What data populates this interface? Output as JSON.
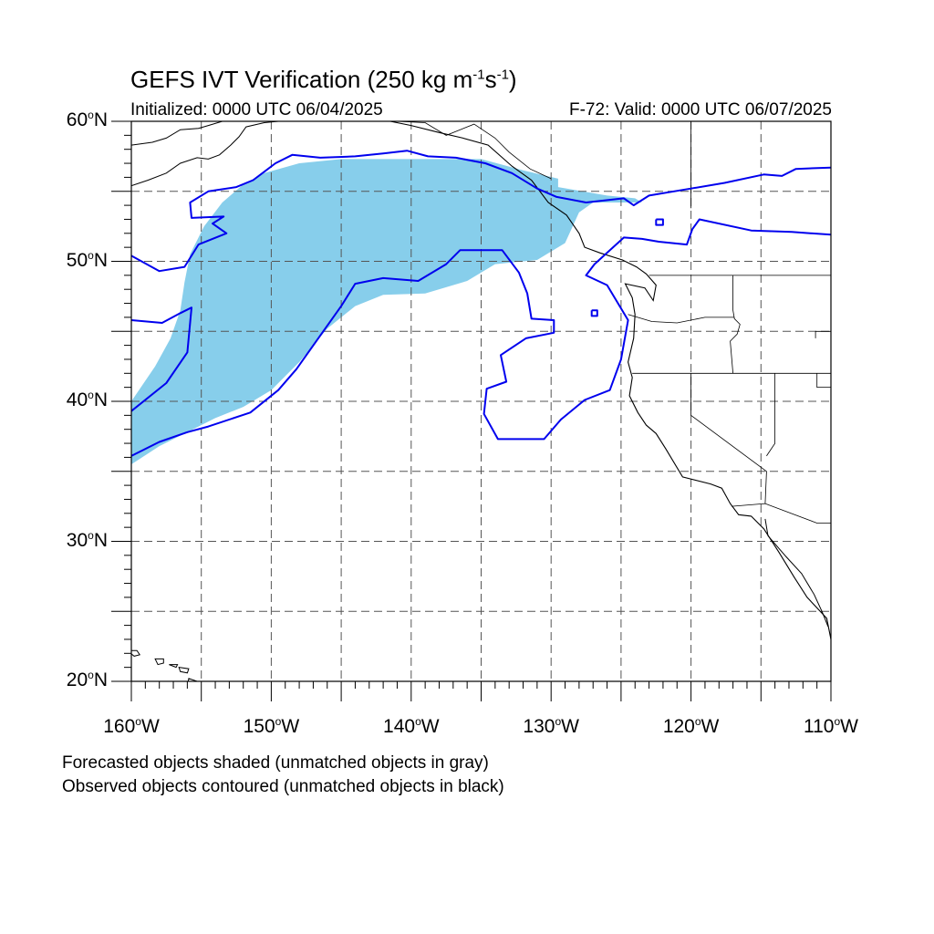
{
  "title": {
    "main": "GEFS IVT Verification (250 kg m",
    "exp1": "-1",
    "mid": "s",
    "exp2": "-1",
    "close": ")"
  },
  "init_text": "Initialized: 0000 UTC 06/04/2025",
  "valid_text": "F-72: Valid: 0000 UTC 06/07/2025",
  "lat_labels": [
    {
      "deg": "60",
      "hemi": "N",
      "lat": 60
    },
    {
      "deg": "50",
      "hemi": "N",
      "lat": 50
    },
    {
      "deg": "40",
      "hemi": "N",
      "lat": 40
    },
    {
      "deg": "30",
      "hemi": "N",
      "lat": 30
    },
    {
      "deg": "20",
      "hemi": "N",
      "lat": 20
    }
  ],
  "lon_labels": [
    {
      "deg": "160",
      "hemi": "W",
      "lon": -160
    },
    {
      "deg": "150",
      "hemi": "W",
      "lon": -150
    },
    {
      "deg": "140",
      "hemi": "W",
      "lon": -140
    },
    {
      "deg": "130",
      "hemi": "W",
      "lon": -130
    },
    {
      "deg": "120",
      "hemi": "W",
      "lon": -120
    },
    {
      "deg": "110",
      "hemi": "W",
      "lon": -110
    }
  ],
  "notes": [
    "Forecasted objects shaded (unmatched objects in gray)",
    "Observed objects contoured (unmatched objects in black)"
  ],
  "map_extent": {
    "lon_min": -160,
    "lon_max": -110,
    "lat_min": 20,
    "lat_max": 60,
    "grid_step": 5
  },
  "colors": {
    "forecast_fill": "#87ceeb",
    "observed_contour": "#0000ee",
    "coast": "#000000",
    "grid": "#555555"
  },
  "forecast_object": {
    "polygon": [
      [
        -160,
        35.5
      ],
      [
        -158,
        36.8
      ],
      [
        -156,
        37.8
      ],
      [
        -154,
        38.8
      ],
      [
        -152,
        39.6
      ],
      [
        -150,
        40.8
      ],
      [
        -148,
        42.8
      ],
      [
        -146,
        45.2
      ],
      [
        -144,
        46.8
      ],
      [
        -142,
        47.6
      ],
      [
        -139,
        47.7
      ],
      [
        -136,
        48.6
      ],
      [
        -134,
        49.8
      ],
      [
        -131,
        50.1
      ],
      [
        -129,
        51.3
      ],
      [
        -128,
        53.5
      ],
      [
        -127,
        54.2
      ],
      [
        -123.5,
        54.2
      ],
      [
        -124,
        54.5
      ],
      [
        -126,
        54.7
      ],
      [
        -129.5,
        55.3
      ],
      [
        -129.5,
        55.9
      ],
      [
        -132,
        56.5
      ],
      [
        -135,
        57.3
      ],
      [
        -140,
        57.3
      ],
      [
        -145,
        57.3
      ],
      [
        -148,
        57.0
      ],
      [
        -150.5,
        56.3
      ],
      [
        -152,
        55.5
      ],
      [
        -153.5,
        54.2
      ],
      [
        -154.8,
        52.5
      ],
      [
        -155.8,
        50.5
      ],
      [
        -156.2,
        48.5
      ],
      [
        -156.5,
        46.5
      ],
      [
        -157.2,
        44.5
      ],
      [
        -158.3,
        42.5
      ],
      [
        -160,
        40.0
      ]
    ]
  },
  "observed_objects": [
    {
      "polygon": [
        [
          -160,
          39.3
        ],
        [
          -157.5,
          41.3
        ],
        [
          -156,
          43.5
        ],
        [
          -155.7,
          46.7
        ],
        [
          -156.5,
          46.3
        ],
        [
          -157.8,
          45.6
        ],
        [
          -160,
          45.8
        ]
      ]
    },
    {
      "polygon": [
        [
          -160,
          50.4
        ],
        [
          -158,
          49.3
        ],
        [
          -156.2,
          49.6
        ],
        [
          -155.2,
          51.2
        ],
        [
          -153.2,
          52.0
        ],
        [
          -154.2,
          52.7
        ],
        [
          -153.4,
          53.2
        ],
        [
          -155.7,
          53.1
        ],
        [
          -155.8,
          54.2
        ],
        [
          -154.5,
          55.0
        ],
        [
          -152.5,
          55.3
        ],
        [
          -151.3,
          55.8
        ],
        [
          -150.5,
          56.4
        ],
        [
          -149.7,
          57.0
        ],
        [
          -148.5,
          57.6
        ],
        [
          -146.5,
          57.4
        ],
        [
          -144,
          57.5
        ],
        [
          -142,
          57.7
        ],
        [
          -140.3,
          57.9
        ],
        [
          -138.8,
          57.5
        ],
        [
          -136.8,
          57.4
        ],
        [
          -134.7,
          57.0
        ],
        [
          -132.8,
          56.3
        ],
        [
          -131,
          55.2
        ],
        [
          -129.6,
          54.6
        ],
        [
          -127.5,
          54.2
        ],
        [
          -124.8,
          54.5
        ],
        [
          -124.1,
          54.0
        ],
        [
          -123,
          54.7
        ],
        [
          -120,
          55.2
        ],
        [
          -117.6,
          55.6
        ],
        [
          -114.8,
          56.2
        ],
        [
          -113.5,
          56.1
        ],
        [
          -112.5,
          56.6
        ],
        [
          -110,
          56.7
        ]
      ]
    },
    {
      "polygon": [
        [
          -160,
          36.1
        ],
        [
          -158,
          37.1
        ],
        [
          -156,
          37.8
        ],
        [
          -154.5,
          38.2
        ],
        [
          -151.5,
          39.2
        ],
        [
          -149.5,
          40.8
        ],
        [
          -148.2,
          42.3
        ],
        [
          -146.5,
          44.7
        ],
        [
          -145,
          46.8
        ],
        [
          -144,
          48.4
        ],
        [
          -142,
          48.8
        ],
        [
          -139.5,
          48.6
        ],
        [
          -137.5,
          49.8
        ],
        [
          -136.5,
          50.8
        ],
        [
          -133.5,
          50.8
        ],
        [
          -132.3,
          49.2
        ],
        [
          -131.7,
          47.7
        ],
        [
          -131.4,
          45.9
        ],
        [
          -129.8,
          45.8
        ],
        [
          -129.8,
          44.9
        ],
        [
          -131.8,
          44.5
        ],
        [
          -133.6,
          43.3
        ],
        [
          -133.2,
          41.4
        ],
        [
          -134.6,
          40.9
        ],
        [
          -134.8,
          39.1
        ],
        [
          -133.8,
          37.3
        ],
        [
          -130.5,
          37.3
        ],
        [
          -129.3,
          38.7
        ],
        [
          -127.6,
          40.1
        ],
        [
          -125.8,
          40.8
        ],
        [
          -125,
          43.0
        ],
        [
          -124.5,
          45.8
        ],
        [
          -126,
          48.3
        ],
        [
          -127.5,
          49.0
        ],
        [
          -126.9,
          49.8
        ],
        [
          -124.8,
          51.7
        ],
        [
          -123.5,
          51.6
        ],
        [
          -122.3,
          51.4
        ],
        [
          -120.3,
          51.2
        ],
        [
          -119.9,
          52.3
        ],
        [
          -119.4,
          53.0
        ],
        [
          -115.7,
          52.2
        ],
        [
          -112.8,
          52.1
        ],
        [
          -110,
          51.9
        ]
      ]
    },
    {
      "polygon": [
        [
          -127.1,
          46.5
        ],
        [
          -126.7,
          46.5
        ],
        [
          -126.7,
          46.1
        ],
        [
          -127.1,
          46.1
        ],
        [
          -127.1,
          46.5
        ]
      ]
    },
    {
      "polygon": [
        [
          -122.5,
          53.0
        ],
        [
          -122.0,
          53.0
        ],
        [
          -122.0,
          52.6
        ],
        [
          -122.5,
          52.6
        ],
        [
          -122.5,
          53.0
        ]
      ]
    }
  ],
  "coastline": [
    [
      -110,
      23
    ],
    [
      -110.3,
      24.5
    ],
    [
      -111.7,
      26
    ],
    [
      -112.6,
      27.4
    ],
    [
      -113.7,
      29.2
    ],
    [
      -114.8,
      30.9
    ],
    [
      -115.7,
      31.8
    ],
    [
      -116.6,
      31.9
    ],
    [
      -117.2,
      32.7
    ],
    [
      -117.8,
      33.8
    ],
    [
      -118.6,
      34.1
    ],
    [
      -120.6,
      34.6
    ],
    [
      -121.8,
      36.6
    ],
    [
      -122.5,
      37.7
    ],
    [
      -123.2,
      38.3
    ],
    [
      -123.8,
      39.2
    ],
    [
      -124.4,
      40.4
    ],
    [
      -124.2,
      41.7
    ],
    [
      -124.5,
      42.8
    ],
    [
      -124.1,
      44.5
    ],
    [
      -124.0,
      46.2
    ],
    [
      -124.2,
      47.4
    ],
    [
      -124.7,
      48.4
    ],
    [
      -123.3,
      48.1
    ],
    [
      -122.7,
      47.2
    ],
    [
      -122.5,
      48.3
    ],
    [
      -123.2,
      49.1
    ],
    [
      -123.9,
      49.6
    ],
    [
      -124.9,
      50.1
    ],
    [
      -126.5,
      50.6
    ],
    [
      -127.6,
      51.0
    ],
    [
      -128.0,
      52.0
    ],
    [
      -128.9,
      53.3
    ],
    [
      -130.2,
      54.2
    ],
    [
      -131.4,
      55.8
    ],
    [
      -132.8,
      56.8
    ],
    [
      -134.5,
      58.3
    ],
    [
      -136.3,
      58.8
    ],
    [
      -138.0,
      59.2
    ],
    [
      -140.0,
      59.7
    ],
    [
      -141.5,
      60.0
    ]
  ],
  "baja_inner": [
    [
      -114.7,
      31.6
    ],
    [
      -114.5,
      30.4
    ],
    [
      -113.2,
      28.9
    ],
    [
      -112.1,
      27.7
    ],
    [
      -111.2,
      26.2
    ],
    [
      -110.6,
      24.9
    ],
    [
      -110.2,
      23.9
    ]
  ],
  "ak_coast": [
    [
      -160,
      58.3
    ],
    [
      -158.5,
      58.5
    ],
    [
      -157.5,
      58.8
    ],
    [
      -156.5,
      59.4
    ],
    [
      -155.2,
      59.5
    ],
    [
      -154.5,
      59.7
    ],
    [
      -153.5,
      60.0
    ]
  ],
  "ak_coast2": [
    [
      -160,
      55.4
    ],
    [
      -158.8,
      55.8
    ],
    [
      -157.5,
      56.3
    ],
    [
      -156.5,
      57.0
    ],
    [
      -155.3,
      57.4
    ],
    [
      -154.5,
      57.3
    ],
    [
      -153.7,
      57.6
    ],
    [
      -152.9,
      58.3
    ],
    [
      -152.3,
      58.9
    ],
    [
      -151.8,
      59.6
    ],
    [
      -150.5,
      59.9
    ],
    [
      -149.5,
      60.0
    ]
  ],
  "hawaii": [
    [
      [
        -160.3,
        22.2
      ],
      [
        -159.6,
        22.2
      ],
      [
        -159.4,
        21.9
      ],
      [
        -159.8,
        21.8
      ],
      [
        -160.3,
        22.2
      ]
    ],
    [
      [
        -158.3,
        21.6
      ],
      [
        -157.7,
        21.6
      ],
      [
        -157.7,
        21.3
      ],
      [
        -158.1,
        21.2
      ],
      [
        -158.3,
        21.6
      ]
    ],
    [
      [
        -157.3,
        21.2
      ],
      [
        -156.7,
        21.2
      ],
      [
        -156.8,
        21.0
      ],
      [
        -157.3,
        21.2
      ]
    ],
    [
      [
        -156.6,
        21.0
      ],
      [
        -155.9,
        20.9
      ],
      [
        -156.0,
        20.6
      ],
      [
        -156.5,
        20.7
      ],
      [
        -156.6,
        21.0
      ]
    ],
    [
      [
        -155.9,
        20.2
      ],
      [
        -155.0,
        19.9
      ],
      [
        -154.8,
        19.4
      ],
      [
        -155.5,
        18.9
      ],
      [
        -156.0,
        19.6
      ],
      [
        -155.9,
        20.2
      ]
    ]
  ],
  "borders": [
    [
      [
        -123.0,
        49.0
      ],
      [
        -110.0,
        49.0
      ]
    ],
    [
      [
        -124.2,
        42.0
      ],
      [
        -110.0,
        42.0
      ]
    ],
    [
      [
        -120.0,
        42.0
      ],
      [
        -120.0,
        39.0
      ],
      [
        -114.6,
        35.0
      ],
      [
        -114.7,
        32.7
      ]
    ],
    [
      [
        -117.1,
        32.5
      ],
      [
        -114.7,
        32.7
      ],
      [
        -111.0,
        31.3
      ],
      [
        -110.0,
        31.3
      ]
    ],
    [
      [
        -117.0,
        49.0
      ],
      [
        -117.0,
        46.5
      ],
      [
        -116.9,
        45.9
      ],
      [
        -116.5,
        45.5
      ],
      [
        -116.7,
        44.8
      ],
      [
        -117.2,
        44.3
      ],
      [
        -117.0,
        42.0
      ]
    ],
    [
      [
        -124.5,
        46.2
      ],
      [
        -122.8,
        45.7
      ],
      [
        -121.0,
        45.6
      ],
      [
        -119.0,
        46.0
      ],
      [
        -116.9,
        46.0
      ]
    ],
    [
      [
        -114.0,
        42.0
      ],
      [
        -114.0,
        37.0
      ],
      [
        -114.6,
        36.1
      ]
    ],
    [
      [
        -111.0,
        42.0
      ],
      [
        -111.0,
        41.0
      ],
      [
        -110.0,
        41.0
      ]
    ],
    [
      [
        -110.0,
        45.0
      ],
      [
        -111.1,
        45.0
      ],
      [
        -111.1,
        44.5
      ]
    ],
    [
      [
        -120.0,
        60.0
      ],
      [
        -120.0,
        53.8
      ]
    ],
    [
      [
        -141.0,
        60.0
      ],
      [
        -139.0,
        59.9
      ],
      [
        -137.5,
        59.0
      ],
      [
        -135.5,
        59.8
      ],
      [
        -134.0,
        58.8
      ],
      [
        -133.0,
        57.8
      ],
      [
        -131.5,
        56.6
      ],
      [
        -130.0,
        55.9
      ]
    ]
  ]
}
